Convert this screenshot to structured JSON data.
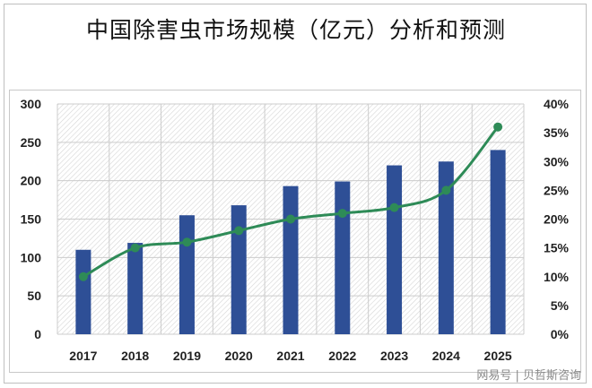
{
  "title": "中国除害虫市场规模（亿元）分析和预测",
  "watermark": "网易号 | 贝哲斯咨询",
  "colors": {
    "bar": "#2e4f96",
    "line": "#2e8b57",
    "grid": "#cccccc"
  },
  "chart_data": {
    "type": "bar",
    "title": "中国除害虫市场规模（亿元）分析和预测",
    "categories": [
      "2017",
      "2018",
      "2019",
      "2020",
      "2021",
      "2022",
      "2023",
      "2024",
      "2025"
    ],
    "series": [
      {
        "type": "bar",
        "axis": "left",
        "values": [
          110,
          119,
          155,
          168,
          193,
          199,
          220,
          225,
          240
        ]
      },
      {
        "type": "line",
        "axis": "right",
        "unit": "%",
        "values": [
          10,
          15,
          16,
          18,
          20,
          21,
          22,
          25,
          36
        ]
      }
    ],
    "left_axis": {
      "ylim": [
        0,
        300
      ],
      "ticks": [
        "0",
        "50",
        "100",
        "150",
        "200",
        "250",
        "300"
      ]
    },
    "right_axis": {
      "ylim": [
        0,
        40
      ],
      "ticks": [
        "0%",
        "5%",
        "10%",
        "15%",
        "20%",
        "25%",
        "30%",
        "35%",
        "40%"
      ]
    },
    "grid": true,
    "legend": "none"
  }
}
